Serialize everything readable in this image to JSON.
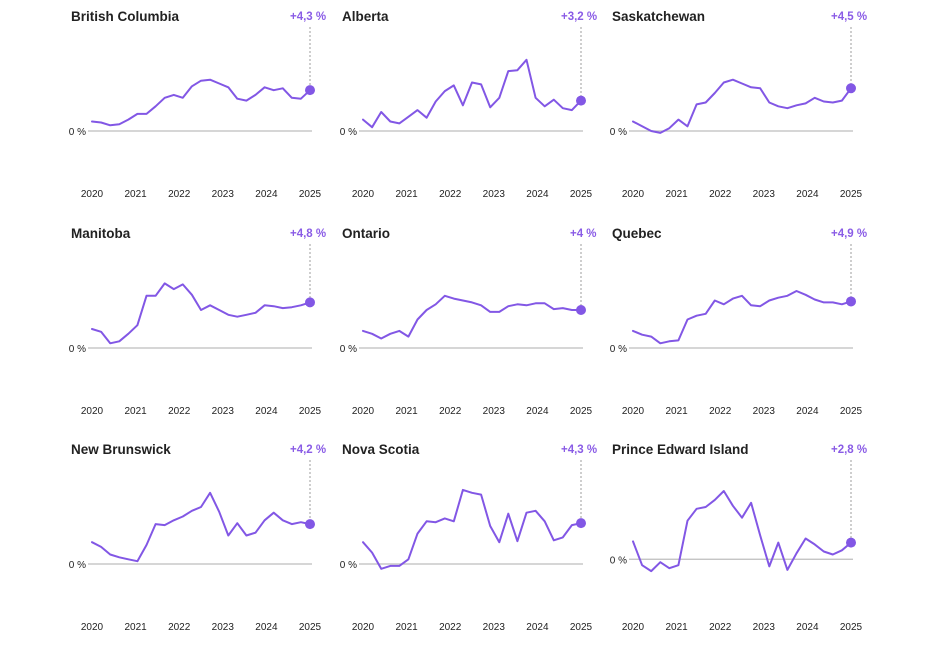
{
  "colors": {
    "line": "#8257e5",
    "axis": "#bdbdbd",
    "text": "#222222",
    "badge": "#8a5ce6"
  },
  "chart_data": [
    {
      "type": "line",
      "title": "British Columbia",
      "change_label": "+4,3 %",
      "zero_label": "0 %",
      "xlim": [
        2020,
        2025
      ],
      "ylim": [
        -2,
        8
      ],
      "x_ticks": [
        "2020",
        "2021",
        "2022",
        "2023",
        "2024",
        "2025"
      ],
      "y": [
        1.0,
        0.9,
        0.6,
        0.7,
        1.2,
        1.8,
        1.8,
        2.6,
        3.5,
        3.8,
        3.5,
        4.7,
        5.3,
        5.4,
        5.0,
        4.6,
        3.4,
        3.2,
        3.8,
        4.6,
        4.3,
        4.5,
        3.5,
        3.4,
        4.3
      ]
    },
    {
      "type": "line",
      "title": "Alberta",
      "change_label": "+3,2 %",
      "zero_label": "0 %",
      "xlim": [
        2020,
        2025
      ],
      "ylim": [
        -2,
        8
      ],
      "x_ticks": [
        "2020",
        "2021",
        "2022",
        "2023",
        "2024",
        "2025"
      ],
      "y": [
        1.2,
        0.4,
        2.0,
        1.0,
        0.8,
        1.5,
        2.2,
        1.4,
        3.1,
        4.2,
        4.8,
        2.7,
        5.1,
        4.9,
        2.5,
        3.5,
        6.3,
        6.4,
        7.5,
        3.5,
        2.6,
        3.3,
        2.4,
        2.2,
        3.2
      ]
    },
    {
      "type": "line",
      "title": "Saskatchewan",
      "change_label": "+4,5 %",
      "zero_label": "0 %",
      "xlim": [
        2020,
        2025
      ],
      "ylim": [
        -2,
        8
      ],
      "x_ticks": [
        "2020",
        "2021",
        "2022",
        "2023",
        "2024",
        "2025"
      ],
      "y": [
        1.0,
        0.5,
        0.0,
        -0.2,
        0.3,
        1.2,
        0.5,
        2.8,
        3.0,
        4.0,
        5.1,
        5.4,
        5.0,
        4.6,
        4.5,
        3.0,
        2.6,
        2.4,
        2.7,
        2.9,
        3.5,
        3.1,
        3.0,
        3.2,
        4.5
      ]
    },
    {
      "type": "line",
      "title": "Manitoba",
      "change_label": "+4,8 %",
      "zero_label": "0 %",
      "xlim": [
        2020,
        2025
      ],
      "ylim": [
        -2,
        8
      ],
      "x_ticks": [
        "2020",
        "2021",
        "2022",
        "2023",
        "2024",
        "2025"
      ],
      "y": [
        2.0,
        1.7,
        0.5,
        0.7,
        1.5,
        2.4,
        5.5,
        5.5,
        6.8,
        6.2,
        6.7,
        5.6,
        4.0,
        4.5,
        4.0,
        3.5,
        3.3,
        3.5,
        3.7,
        4.5,
        4.4,
        4.2,
        4.3,
        4.5,
        4.8
      ]
    },
    {
      "type": "line",
      "title": "Ontario",
      "change_label": "+4 %",
      "zero_label": "0 %",
      "xlim": [
        2020,
        2025
      ],
      "ylim": [
        -2,
        8
      ],
      "x_ticks": [
        "2020",
        "2021",
        "2022",
        "2023",
        "2024",
        "2025"
      ],
      "y": [
        1.8,
        1.5,
        1.0,
        1.5,
        1.8,
        1.2,
        3.0,
        4.0,
        4.6,
        5.5,
        5.2,
        5.0,
        4.8,
        4.5,
        3.8,
        3.8,
        4.4,
        4.6,
        4.5,
        4.7,
        4.7,
        4.1,
        4.2,
        4.0,
        4.0
      ]
    },
    {
      "type": "line",
      "title": "Quebec",
      "change_label": "+4,9 %",
      "zero_label": "0 %",
      "xlim": [
        2020,
        2025
      ],
      "ylim": [
        -2,
        8
      ],
      "x_ticks": [
        "2020",
        "2021",
        "2022",
        "2023",
        "2024",
        "2025"
      ],
      "y": [
        1.8,
        1.4,
        1.2,
        0.5,
        0.7,
        0.8,
        3.0,
        3.4,
        3.6,
        5.0,
        4.6,
        5.2,
        5.5,
        4.5,
        4.4,
        5.0,
        5.3,
        5.5,
        6.0,
        5.6,
        5.1,
        4.8,
        4.8,
        4.6,
        4.9
      ]
    },
    {
      "type": "line",
      "title": "New Brunswick",
      "change_label": "+4,2 %",
      "zero_label": "0 %",
      "xlim": [
        2020,
        2025
      ],
      "ylim": [
        -2,
        8
      ],
      "x_ticks": [
        "2020",
        "2021",
        "2022",
        "2023",
        "2024",
        "2025"
      ],
      "y": [
        2.3,
        1.8,
        1.0,
        0.7,
        0.5,
        0.3,
        2.0,
        4.2,
        4.1,
        4.6,
        5.0,
        5.6,
        6.0,
        7.5,
        5.5,
        3.0,
        4.3,
        3.0,
        3.3,
        4.6,
        5.4,
        4.6,
        4.2,
        4.4,
        4.2
      ]
    },
    {
      "type": "line",
      "title": "Nova Scotia",
      "change_label": "+4,3 %",
      "zero_label": "0 %",
      "xlim": [
        2020,
        2025
      ],
      "ylim": [
        -2,
        8
      ],
      "x_ticks": [
        "2020",
        "2021",
        "2022",
        "2023",
        "2024",
        "2025"
      ],
      "y": [
        2.3,
        1.2,
        -0.5,
        -0.2,
        -0.2,
        0.5,
        3.2,
        4.5,
        4.4,
        4.8,
        4.5,
        7.8,
        7.5,
        7.3,
        4.0,
        2.3,
        5.3,
        2.4,
        5.4,
        5.6,
        4.5,
        2.5,
        2.8,
        4.1,
        4.3
      ]
    },
    {
      "type": "line",
      "title": "Prince Edward Island",
      "change_label": "+2,8 %",
      "zero_label": "0 %",
      "xlim": [
        2020,
        2025
      ],
      "ylim": [
        -4,
        12
      ],
      "x_ticks": [
        "2020",
        "2021",
        "2022",
        "2023",
        "2024",
        "2025"
      ],
      "y": [
        3.0,
        -1.0,
        -2.0,
        -0.5,
        -1.5,
        -1.0,
        6.5,
        8.5,
        8.8,
        10.0,
        11.5,
        9.0,
        7.0,
        9.5,
        4.0,
        -1.2,
        2.8,
        -1.8,
        1.0,
        3.5,
        2.5,
        1.3,
        0.8,
        1.5,
        2.8
      ]
    }
  ]
}
